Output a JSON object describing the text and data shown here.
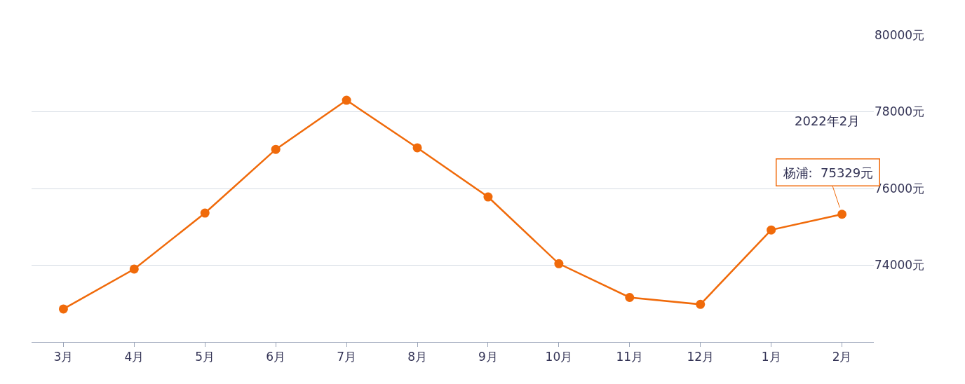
{
  "chart_data": {
    "type": "line",
    "categories": [
      "3月",
      "4月",
      "5月",
      "6月",
      "7月",
      "8月",
      "9月",
      "10月",
      "11月",
      "12月",
      "1月",
      "2月"
    ],
    "series": [
      {
        "color": "#f06a0a",
        "values": [
          72860,
          73900,
          75360,
          77020,
          78300,
          77060,
          75780,
          74040,
          73160,
          72980,
          74920,
          75329
        ]
      }
    ],
    "ylim": [
      72000,
      80000
    ],
    "yticks": [
      {
        "value": 72000,
        "label": null
      },
      {
        "value": 74000,
        "label": "74000元"
      },
      {
        "value": 76000,
        "label": "76000元"
      },
      {
        "value": 78000,
        "label": "78000元"
      },
      {
        "value": 80000,
        "label": "80000元"
      }
    ],
    "grid": "y",
    "marker": "circle",
    "line_style": "solid",
    "annotations": [
      "2022年2月",
      {
        "text": "杨浦:  75329元",
        "x": "2月",
        "y": 75329
      }
    ]
  }
}
